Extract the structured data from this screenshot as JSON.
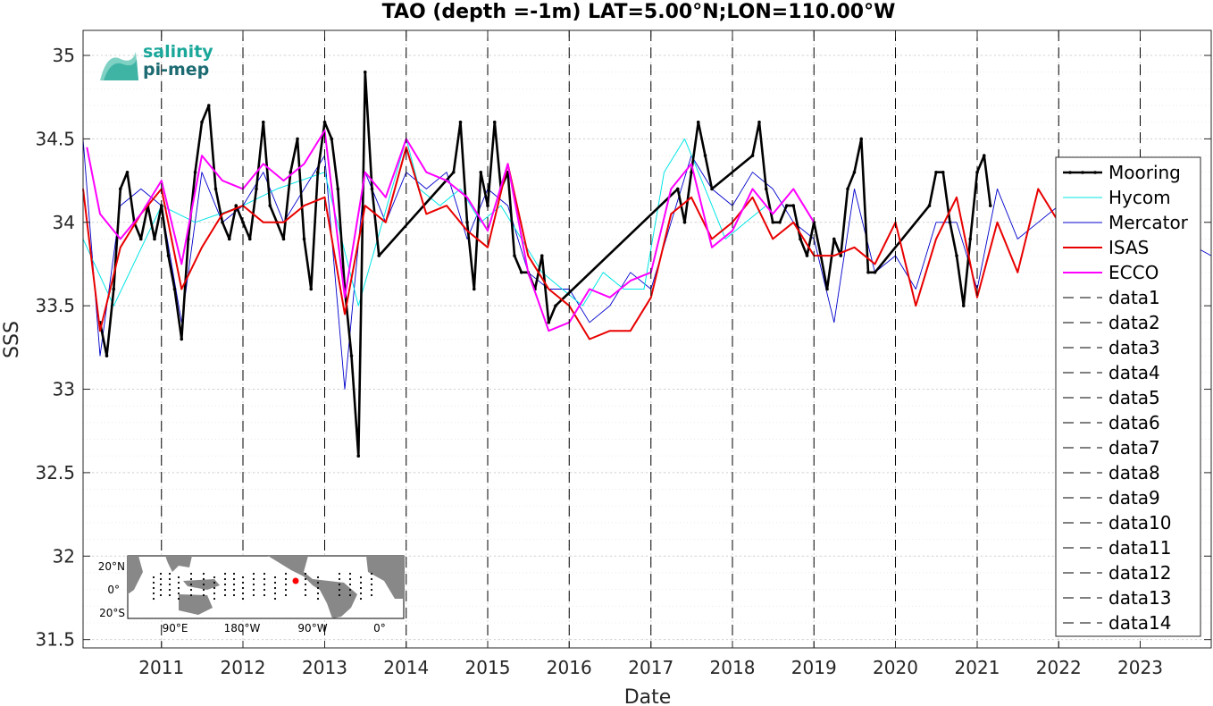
{
  "chart_data": {
    "type": "line",
    "title": "TAO (depth =-1m) LAT=5.00°N;LON=110.00°W",
    "xlabel": "Date",
    "ylabel": "SSS",
    "xlim": [
      "2010-01-15",
      "2023-11-15"
    ],
    "ylim": [
      31.45,
      35.15
    ],
    "yticks": [
      31.5,
      32,
      32.5,
      33,
      33.5,
      34,
      34.5,
      35
    ],
    "ytick_labels": [
      "31.5",
      "32",
      "32.5",
      "33",
      "33.5",
      "34",
      "34.5",
      "35"
    ],
    "xticks": [
      "2011-01-01",
      "2012-01-01",
      "2013-01-01",
      "2014-01-01",
      "2015-01-01",
      "2016-01-01",
      "2017-01-01",
      "2018-01-01",
      "2019-01-01",
      "2020-01-01",
      "2021-01-01",
      "2022-01-01",
      "2023-01-01"
    ],
    "xtick_labels": [
      "2011",
      "2012",
      "2013",
      "2014",
      "2015",
      "2016",
      "2017",
      "2018",
      "2019",
      "2020",
      "2021",
      "2022",
      "2023"
    ],
    "grid": "on (dotted)",
    "legend_position": "right",
    "series": [
      {
        "name": "Mooring",
        "color": "#000000",
        "style": "thick line with dots",
        "x": [
          "2010-04-01",
          "2010-05-01",
          "2010-06-01",
          "2010-07-01",
          "2010-08-01",
          "2010-09-01",
          "2010-10-01",
          "2010-11-01",
          "2010-12-01",
          "2011-01-01",
          "2011-02-01",
          "2011-03-01",
          "2011-04-01",
          "2011-05-01",
          "2011-06-01",
          "2011-07-01",
          "2011-08-01",
          "2011-09-01",
          "2011-10-01",
          "2011-11-01",
          "2011-12-01",
          "2012-01-01",
          "2012-02-01",
          "2012-03-01",
          "2012-04-01",
          "2012-05-01",
          "2012-06-01",
          "2012-07-01",
          "2012-08-01",
          "2012-09-01",
          "2012-10-01",
          "2012-11-01",
          "2012-12-01",
          "2013-01-01",
          "2013-02-01",
          "2013-03-01",
          "2013-04-01",
          "2013-05-01",
          "2013-06-01",
          "2013-07-01",
          "2013-08-01",
          "2013-09-01",
          "2014-08-01",
          "2014-09-01",
          "2014-10-01",
          "2014-11-01",
          "2014-12-01",
          "2015-01-01",
          "2015-02-01",
          "2015-03-01",
          "2015-04-01",
          "2015-05-01",
          "2015-06-01",
          "2015-07-01",
          "2015-08-01",
          "2015-09-01",
          "2015-10-01",
          "2015-11-01",
          "2017-05-01",
          "2017-06-01",
          "2017-07-01",
          "2017-08-01",
          "2017-09-01",
          "2017-10-01",
          "2018-04-01",
          "2018-05-01",
          "2018-06-01",
          "2018-07-01",
          "2018-08-01",
          "2018-09-01",
          "2018-10-01",
          "2018-11-01",
          "2018-12-01",
          "2019-01-01",
          "2019-02-01",
          "2019-03-01",
          "2019-04-01",
          "2019-05-01",
          "2019-06-01",
          "2019-07-01",
          "2019-08-01",
          "2019-09-01",
          "2019-10-01",
          "2020-06-01",
          "2020-07-01",
          "2020-08-01",
          "2020-09-01",
          "2020-10-01",
          "2020-11-01",
          "2020-12-01",
          "2021-01-01",
          "2021-02-01",
          "2021-03-01"
        ],
        "values": [
          33.4,
          33.2,
          33.6,
          34.2,
          34.3,
          34.0,
          33.9,
          34.1,
          33.9,
          34.1,
          33.8,
          33.6,
          33.3,
          33.9,
          34.3,
          34.6,
          34.7,
          34.2,
          34.0,
          33.9,
          34.1,
          34.0,
          33.9,
          34.2,
          34.6,
          34.1,
          34.0,
          33.9,
          34.3,
          34.5,
          33.9,
          33.6,
          34.3,
          34.6,
          34.5,
          34.2,
          33.6,
          33.2,
          32.6,
          34.9,
          34.2,
          33.8,
          34.3,
          34.6,
          34.0,
          33.6,
          34.3,
          34.1,
          34.6,
          34.2,
          34.3,
          33.8,
          33.7,
          33.7,
          33.6,
          33.8,
          33.4,
          33.5,
          34.2,
          34.0,
          34.3,
          34.6,
          34.4,
          34.2,
          34.4,
          34.6,
          34.2,
          34.0,
          34.0,
          34.1,
          34.1,
          33.9,
          33.8,
          34.0,
          33.8,
          33.6,
          33.9,
          33.8,
          34.2,
          34.3,
          34.5,
          33.7,
          33.7,
          34.1,
          34.3,
          34.3,
          34.0,
          33.8,
          33.5,
          33.9,
          34.3,
          34.4,
          34.1
        ]
      },
      {
        "name": "Hycom",
        "color": "#00e5e5",
        "style": "thin line",
        "x": [
          "2010-01-15",
          "2010-06-01",
          "2011-01-01",
          "2011-06-01",
          "2012-01-01",
          "2012-06-01",
          "2013-01-01",
          "2013-06-01",
          "2014-01-01",
          "2014-03-01",
          "2014-06-01",
          "2014-09-01",
          "2014-12-01",
          "2015-03-01",
          "2015-06-01",
          "2015-09-01",
          "2015-12-01",
          "2016-03-01",
          "2016-06-01",
          "2016-09-01",
          "2016-12-01",
          "2017-03-01",
          "2017-06-01",
          "2017-09-01",
          "2017-12-01",
          "2018-03-01",
          "2018-06-01"
        ],
        "values": [
          33.9,
          33.5,
          34.1,
          34.0,
          34.1,
          34.2,
          34.3,
          33.5,
          34.5,
          34.2,
          34.1,
          34.2,
          34.0,
          34.1,
          33.9,
          33.7,
          33.6,
          33.5,
          33.7,
          33.6,
          33.6,
          34.3,
          34.5,
          34.2,
          33.9,
          34.0,
          34.1
        ]
      },
      {
        "name": "Mercator",
        "color": "#0000cc",
        "style": "thin line",
        "x": [
          "2010-01-15",
          "2010-04-01",
          "2010-07-01",
          "2010-10-01",
          "2011-01-01",
          "2011-04-01",
          "2011-07-01",
          "2011-10-01",
          "2012-01-01",
          "2012-04-01",
          "2012-07-01",
          "2012-10-01",
          "2013-01-01",
          "2013-04-01",
          "2013-07-01",
          "2013-10-01",
          "2014-01-01",
          "2014-04-01",
          "2014-07-01",
          "2014-10-01",
          "2015-01-01",
          "2015-04-01",
          "2015-07-01",
          "2015-10-01",
          "2016-01-01",
          "2016-04-01",
          "2016-07-01",
          "2016-10-01",
          "2017-01-01",
          "2017-04-01",
          "2017-07-01",
          "2017-10-01",
          "2018-01-01",
          "2018-04-01",
          "2018-07-01",
          "2018-10-01",
          "2019-01-01",
          "2019-04-01",
          "2019-07-01",
          "2019-10-01",
          "2020-01-01",
          "2020-04-01",
          "2020-07-01",
          "2020-10-01",
          "2021-01-01",
          "2021-04-01",
          "2021-07-01",
          "2021-10-01",
          "2022-01-01",
          "2022-04-01",
          "2022-07-01",
          "2022-10-01",
          "2023-01-01",
          "2023-04-01",
          "2023-07-01",
          "2023-11-15"
        ],
        "values": [
          34.5,
          33.2,
          34.1,
          34.2,
          34.1,
          33.4,
          34.3,
          34.0,
          34.1,
          34.3,
          34.0,
          34.2,
          34.4,
          33.0,
          34.3,
          34.0,
          34.3,
          34.2,
          34.3,
          33.9,
          34.2,
          34.1,
          33.7,
          33.6,
          33.6,
          33.4,
          33.5,
          33.7,
          33.6,
          34.0,
          34.4,
          34.2,
          34.1,
          34.3,
          34.2,
          34.0,
          33.9,
          33.4,
          34.2,
          33.7,
          33.8,
          33.6,
          34.0,
          34.0,
          33.6,
          34.2,
          33.9,
          34.0,
          34.1,
          34.3,
          33.9,
          34.2,
          33.9,
          34.1,
          33.9,
          33.8
        ]
      },
      {
        "name": "ISAS",
        "color": "#e80000",
        "style": "medium line",
        "x": [
          "2010-01-15",
          "2010-04-01",
          "2010-07-01",
          "2010-10-01",
          "2011-01-01",
          "2011-04-01",
          "2011-07-01",
          "2011-10-01",
          "2012-01-01",
          "2012-04-01",
          "2012-07-01",
          "2012-10-01",
          "2013-01-01",
          "2013-04-01",
          "2013-07-01",
          "2013-10-01",
          "2014-01-01",
          "2014-04-01",
          "2014-07-01",
          "2014-10-01",
          "2015-01-01",
          "2015-04-01",
          "2015-07-01",
          "2015-10-01",
          "2016-01-01",
          "2016-04-01",
          "2016-07-01",
          "2016-10-01",
          "2017-01-01",
          "2017-04-01",
          "2017-07-01",
          "2017-10-01",
          "2018-01-01",
          "2018-04-01",
          "2018-07-01",
          "2018-10-01",
          "2019-01-01",
          "2019-04-01",
          "2019-07-01",
          "2019-10-01",
          "2020-01-01",
          "2020-04-01",
          "2020-07-01",
          "2020-10-01",
          "2021-01-01",
          "2021-04-01",
          "2021-07-01",
          "2021-10-01",
          "2022-01-01",
          "2022-04-01",
          "2022-07-01"
        ],
        "values": [
          34.2,
          33.35,
          33.85,
          34.05,
          34.2,
          33.6,
          33.85,
          34.05,
          34.1,
          34.0,
          34.0,
          34.1,
          34.15,
          33.45,
          34.1,
          34.0,
          34.45,
          34.05,
          34.1,
          33.95,
          33.85,
          34.35,
          33.8,
          33.6,
          33.5,
          33.3,
          33.35,
          33.35,
          33.55,
          34.05,
          34.15,
          33.9,
          34.0,
          34.15,
          33.9,
          34.0,
          33.8,
          33.8,
          33.85,
          33.75,
          34.0,
          33.5,
          33.9,
          34.15,
          33.55,
          34.0,
          33.7,
          34.2,
          34.0,
          33.8,
          33.75
        ]
      },
      {
        "name": "ECCO",
        "color": "#ff00ff",
        "style": "medium line",
        "x": [
          "2010-02-01",
          "2010-04-01",
          "2010-07-01",
          "2010-10-01",
          "2011-01-01",
          "2011-04-01",
          "2011-07-01",
          "2011-10-01",
          "2012-01-01",
          "2012-04-01",
          "2012-07-01",
          "2012-10-01",
          "2013-01-01",
          "2013-04-01",
          "2013-07-01",
          "2013-10-01",
          "2014-01-01",
          "2014-04-01",
          "2014-07-01",
          "2014-10-01",
          "2015-01-01",
          "2015-04-01",
          "2015-07-01",
          "2015-10-01",
          "2016-01-01",
          "2016-04-01",
          "2016-07-01",
          "2016-10-01",
          "2017-01-01",
          "2017-04-01",
          "2017-07-01",
          "2017-10-01",
          "2018-01-01",
          "2018-04-01",
          "2018-07-01",
          "2018-10-01",
          "2019-01-01"
        ],
        "values": [
          34.45,
          34.05,
          33.9,
          34.05,
          34.25,
          33.75,
          34.4,
          34.25,
          34.2,
          34.35,
          34.25,
          34.35,
          34.55,
          33.55,
          34.3,
          34.15,
          34.5,
          34.3,
          34.25,
          34.15,
          33.95,
          34.35,
          33.7,
          33.35,
          33.4,
          33.6,
          33.55,
          33.65,
          33.7,
          34.2,
          34.35,
          33.85,
          33.95,
          34.2,
          34.05,
          34.2,
          34.0
        ]
      }
    ],
    "legend_entries": [
      "Mooring",
      "Hycom",
      "Mercator",
      "ISAS",
      "ECCO",
      "data1",
      "data2",
      "data3",
      "data4",
      "data5",
      "data6",
      "data7",
      "data8",
      "data9",
      "data10",
      "data11",
      "data12",
      "data13",
      "data14"
    ],
    "vlines": {
      "style": "dashed black",
      "x": [
        "2011-01-01",
        "2012-01-01",
        "2013-01-01",
        "2014-01-01",
        "2015-01-01",
        "2016-01-01",
        "2017-01-01",
        "2018-01-01",
        "2019-01-01",
        "2020-01-01",
        "2021-01-01",
        "2022-01-01",
        "2023-01-01"
      ]
    }
  },
  "logo": {
    "line1": "salinity",
    "line2": "pi-mep"
  },
  "inset_map": {
    "ylabels": [
      "20°N",
      "0°",
      "20°S"
    ],
    "xlabels": [
      "90°E",
      "180°W",
      "90°W",
      "0°"
    ],
    "marker_color": "#ff0000"
  }
}
